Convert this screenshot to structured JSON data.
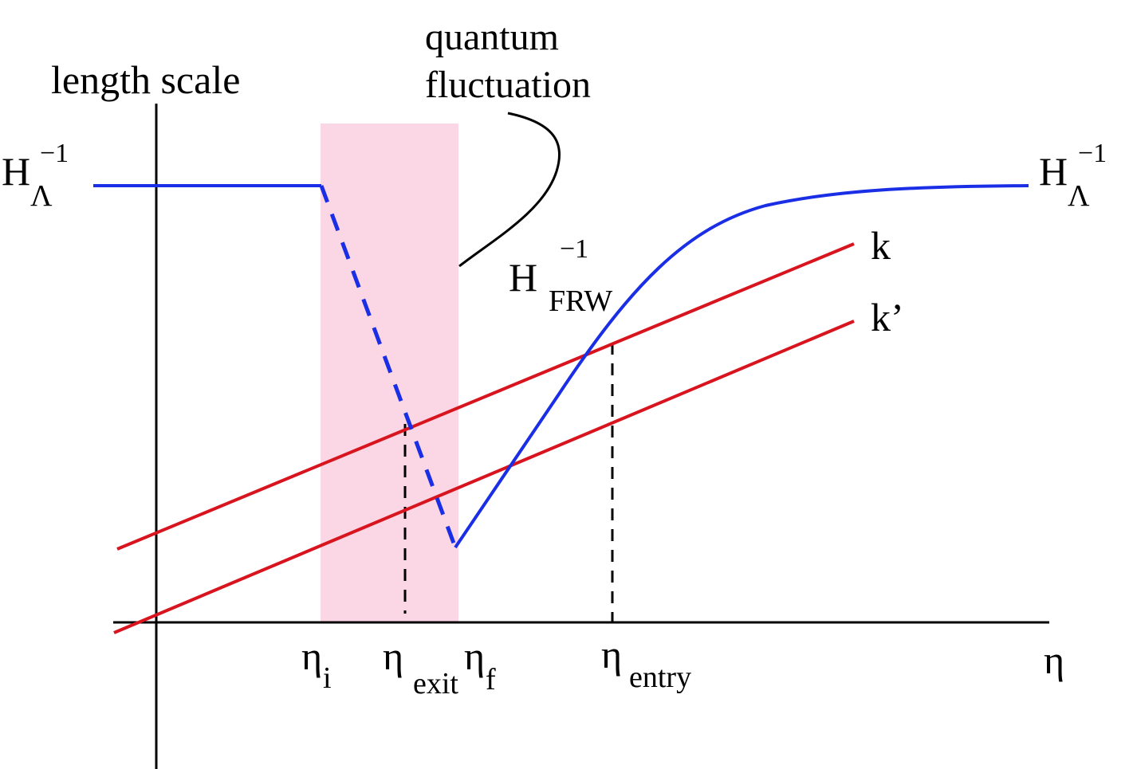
{
  "axes": {
    "y_label": "length scale",
    "x_label": "η"
  },
  "annotation": {
    "line1": "quantum",
    "line2": "fluctuation"
  },
  "hubble_lambda_left": {
    "base": "H",
    "sub": "Λ",
    "sup": "−1"
  },
  "hubble_lambda_right": {
    "base": "H",
    "sub": "Λ",
    "sup": "−1"
  },
  "hubble_frw": {
    "base": "H",
    "sub": "FRW",
    "sup": "−1"
  },
  "modes": {
    "k": "k",
    "k_prime": "k’"
  },
  "ticks": {
    "eta_i": {
      "base": "η",
      "sub": "i"
    },
    "eta_exit": {
      "base": "η",
      "sub": "exit"
    },
    "eta_f": {
      "base": "η",
      "sub": "f"
    },
    "eta_entry": {
      "base": "η",
      "sub": "entry"
    }
  },
  "colors": {
    "hubble_curve": "#1a2ee6",
    "mode_lines": "#d8141e",
    "inflation_band": "#fbd6e4",
    "axes": "#000000"
  }
}
